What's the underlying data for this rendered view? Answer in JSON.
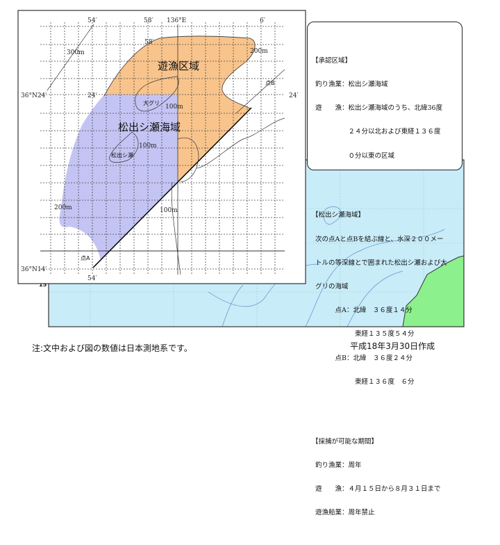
{
  "map": {
    "zone_leisure": "遊漁区域",
    "zone_matsude": "松出シ瀬海域",
    "place_oguri": "大グリ",
    "place_matsudeshise": "松出シ瀬",
    "point_a": "点A",
    "point_b": "点B",
    "depth_labels": [
      "300m",
      "200m",
      "100m",
      "100m",
      "200m",
      "100m"
    ],
    "lon_labels": [
      "54′",
      "58′",
      "136°E",
      "6′",
      "58′",
      "54′"
    ],
    "lat_labels": [
      "36°N24′",
      "24′",
      "24′",
      "36°N14′"
    ],
    "frame_label": "15",
    "colors": {
      "leisure": "#f8c48c",
      "matsude": "#c4c4f4",
      "sea": "#c8ecf8",
      "land": "#8cf08c"
    }
  },
  "info": {
    "sec1_title": "【承認区域】",
    "sec1_lines": [
      "釣り漁業：松出シ瀬海域",
      "遊　　漁：松出シ瀬海域のうち、北緯36度",
      "　　　　　２４分以北および東経１３６度",
      "　　　　　０分以東の区域"
    ],
    "sec2_title": "【松出シ瀬海域】",
    "sec2_lines": [
      "次の点Aと点Bを結ぶ線と、水深２００メー",
      "トルの等深線とで囲まれた松出シ瀬および大",
      "グリの海域",
      "　　　点A：北緯　３６度１４分",
      "　　　　　　東経１３５度５４分",
      "　　　点B：北緯　３６度２４分",
      "　　　　　　東経１３６度　６分"
    ],
    "sec3_title": "【採捕が可能な期間】",
    "sec3_lines": [
      "釣り漁業：周年",
      "遊　　漁：４月１５日から８月３１日まで",
      "遊漁船業：周年禁止"
    ]
  },
  "footer": {
    "note": "注:文中および図の数値は日本測地系です。",
    "date": "平成18年3月30日作成"
  }
}
